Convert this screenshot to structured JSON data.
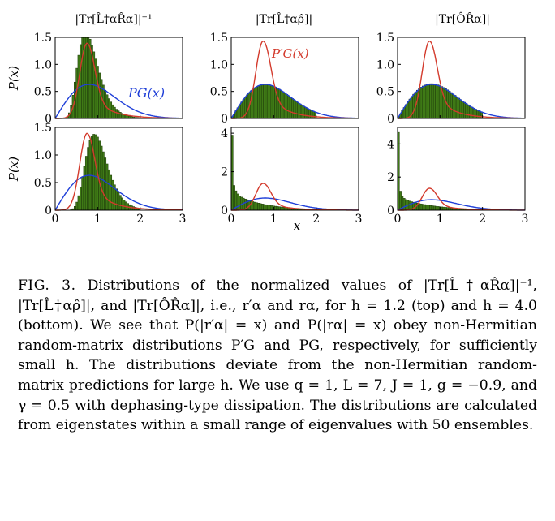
{
  "figure": {
    "columns": [
      {
        "title": "|Tr[L̂†αR̂α]|⁻¹"
      },
      {
        "title": "|Tr[L̂†αρ̂]|"
      },
      {
        "title": "|Tr[ÔR̂α]|"
      }
    ],
    "ylabel": "P(x)",
    "xlabel": "x",
    "annotations": {
      "pg": "PG(x)",
      "pg_prime": "P′G(x)"
    },
    "colors": {
      "histogram": "#3f7a16",
      "histogram_edge": "#1e3a0a",
      "pg": "#1f3fd8",
      "pg_prime": "#d33a2c"
    }
  },
  "chart_data": [
    {
      "type": "bar",
      "panel": "top-left",
      "xlim": [
        0,
        3
      ],
      "ylim": [
        0,
        1.5
      ],
      "yticks": [
        "0",
        "0.5",
        "1.0",
        "1.5"
      ],
      "xticks": [
        "0",
        "1",
        "2",
        "3"
      ]
    },
    {
      "type": "bar",
      "panel": "top-middle",
      "xlim": [
        0,
        3
      ],
      "ylim": [
        0,
        1.5
      ],
      "yticks": [
        "0",
        "0.5",
        "1.0",
        "1.5"
      ],
      "xticks": [
        "0",
        "1",
        "2",
        "3"
      ]
    },
    {
      "type": "bar",
      "panel": "top-right",
      "xlim": [
        0,
        3
      ],
      "ylim": [
        0,
        1.5
      ],
      "yticks": [
        "0",
        "0.5",
        "1.0",
        "1.5"
      ],
      "xticks": [
        "0",
        "1",
        "2",
        "3"
      ]
    },
    {
      "type": "bar",
      "panel": "bottom-left",
      "xlim": [
        0,
        3
      ],
      "ylim": [
        0,
        1.5
      ],
      "yticks": [
        "0",
        "0.5",
        "1.0",
        "1.5"
      ],
      "xticks": [
        "0",
        "1",
        "2",
        "3"
      ]
    },
    {
      "type": "bar",
      "panel": "bottom-middle",
      "xlim": [
        0,
        3
      ],
      "ylim": [
        0,
        4.3
      ],
      "yticks": [
        "0",
        "2",
        "4"
      ],
      "xticks": [
        "0",
        "1",
        "2",
        "3"
      ]
    },
    {
      "type": "bar",
      "panel": "bottom-right",
      "xlim": [
        0,
        3
      ],
      "ylim": [
        0,
        5
      ],
      "yticks": [
        "0",
        "2",
        "4"
      ],
      "xticks": [
        "0",
        "1",
        "2",
        "3"
      ]
    }
  ],
  "caption": {
    "label": "FIG. 3.",
    "text": "Distributions of the normalized values of |Tr[L̂†αR̂α]|⁻¹, |Tr[L̂†αρ̂]|, and |Tr[ÔR̂α]|, i.e., r′α and rα, for h = 1.2 (top) and h = 4.0 (bottom). We see that P(|r′α| = x) and P(|rα| = x) obey non-Hermitian random-matrix distributions P′G and PG, respectively, for sufficiently small h. The distributions deviate from the non-Hermitian random-matrix predictions for large h. We use q = 1, L = 7, J = 1, g = −0.9, and γ = 0.5 with dephasing-type dissipation. The distributions are calculated from eigenstates within a small range of eigenvalues with 50 ensembles."
  }
}
